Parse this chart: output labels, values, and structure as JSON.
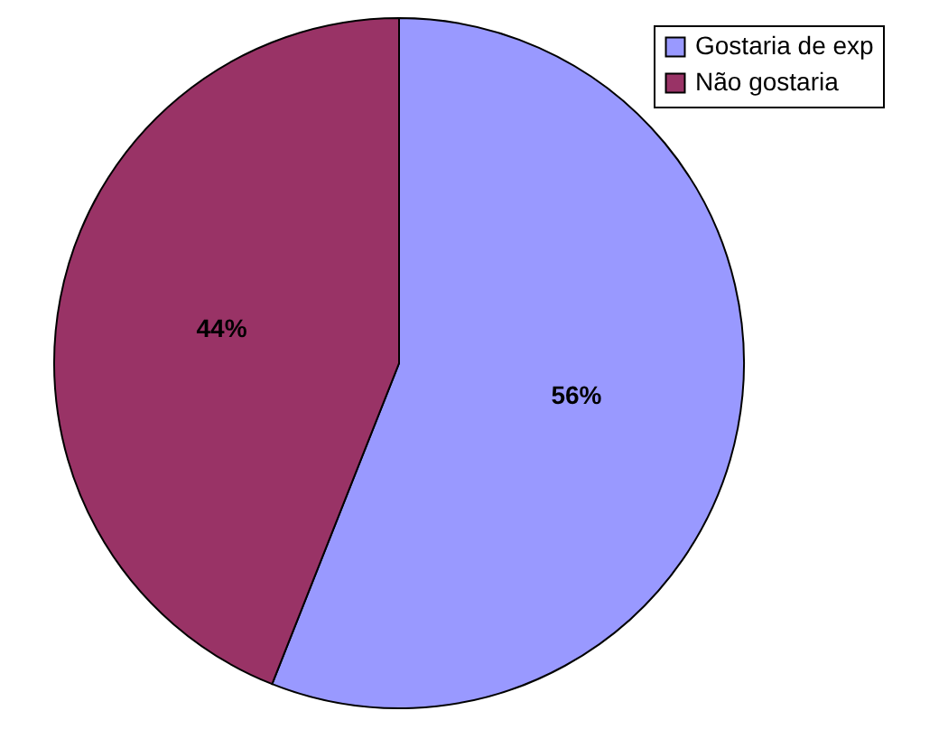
{
  "chart_data": {
    "type": "pie",
    "categories": [
      "Gostaria de exp",
      "Não gostaria"
    ],
    "values": [
      56,
      44
    ],
    "colors": [
      "#9999ff",
      "#993366"
    ],
    "value_labels": [
      "56%",
      "44%"
    ],
    "legend": "top right"
  }
}
